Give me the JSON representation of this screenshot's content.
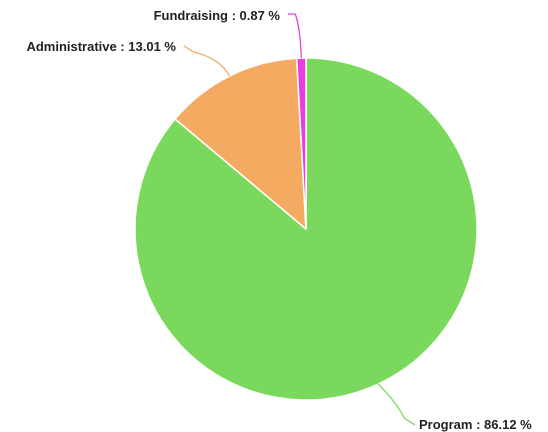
{
  "chart_data": {
    "type": "pie",
    "title": "",
    "slices": [
      {
        "name": "Program",
        "value": 86.12,
        "label": "Program : 86.12 %",
        "color": "#7ad95d"
      },
      {
        "name": "Administrative",
        "value": 13.01,
        "label": "Administrative : 13.01 %",
        "color": "#f5aa62"
      },
      {
        "name": "Fundraising",
        "value": 0.87,
        "label": "Fundraising : 0.87 %",
        "color": "#e83fe0"
      }
    ],
    "slice_border_color": "#ffffff",
    "label_text_color": "#222222"
  }
}
